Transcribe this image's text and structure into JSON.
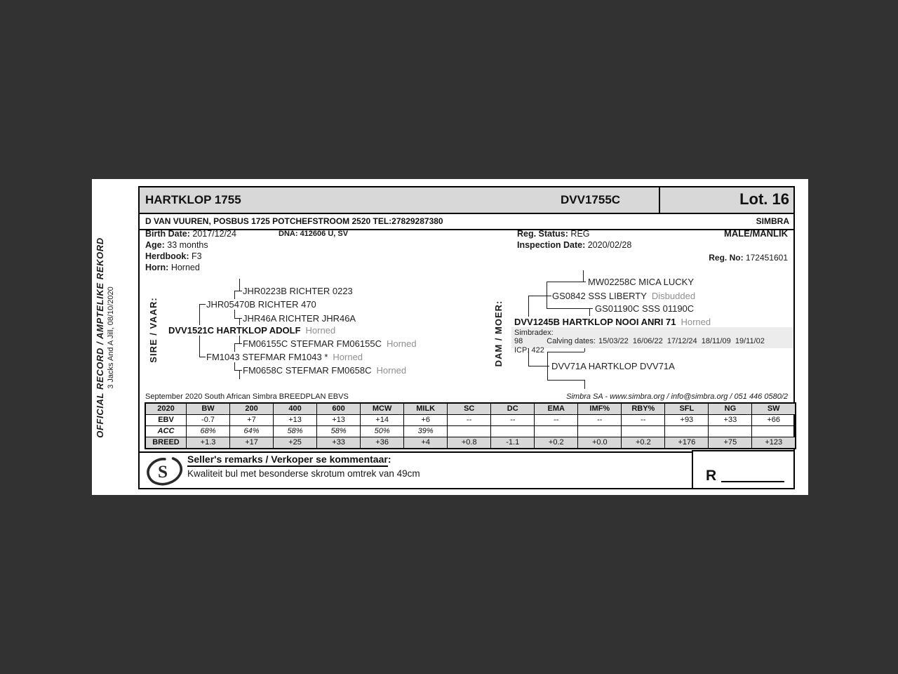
{
  "colors": {
    "outer_background": "#323232",
    "page_background": "#ffffff",
    "header_gray": "#d8d8d8",
    "stats_band_gray": "#ececec",
    "muted_text": "#8f8f8f"
  },
  "side_label": {
    "line1": "OFFICIAL RECORD / AMPTELIKE REKORD",
    "line2": "3 Jacks And A Jill, 08/10/2020"
  },
  "header": {
    "name": "HARTKLOP 1755",
    "id": "DVV1755C",
    "lot": "Lot. 16",
    "owner": "D VAN VUUREN, POSBUS 1725 POTCHEFSTROOM 2520 TEL:27829287380",
    "breed": "SIMBRA"
  },
  "details": {
    "birth_date_label": "Birth Date:",
    "birth_date": "2017/12/24",
    "age_label": "Age:",
    "age": "33 months",
    "herdbook_label": "Herdbook:",
    "herdbook": "F3",
    "horn_label": "Horn:",
    "horn": "Horned",
    "dna_label": "DNA:",
    "dna": "412606 U, SV",
    "reg_status_label": "Reg. Status:",
    "reg_status": "REG",
    "inspection_label": "Inspection Date:",
    "inspection_date": "2020/02/28",
    "sex": "MALE/MANLIK",
    "reg_no_label": "Reg. No:",
    "reg_no": "172451601"
  },
  "sire_tree": {
    "label": "SIRE / VAAR:",
    "main": "DVV1521C HARTKLOP ADOLF",
    "main_suffix": "Horned",
    "father": "JHR05470B RICHTER 470",
    "ff": "JHR0223B RICHTER 0223",
    "fm": "JHR46A RICHTER JHR46A",
    "mother": "FM1043 STEFMAR FM1043 *",
    "mother_suffix": "Horned",
    "mf": "FM06155C STEFMAR FM06155C",
    "mf_suffix": "Horned",
    "mm": "FM0658C STEFMAR FM0658C",
    "mm_suffix": "Horned"
  },
  "dam_tree": {
    "label": "DAM / MOER:",
    "main": "DVV1245B HARTKLOP NOOI ANRI 71",
    "main_suffix": "Horned",
    "father": "GS0842 SSS LIBERTY",
    "father_suffix": "Disbudded",
    "ff": "MW02258C MICA LUCKY",
    "fm": "GS01190C SSS 01190C",
    "mother": "DVV71A HARTKLOP DVV71A"
  },
  "dam_stats": {
    "simbradex_label": "Simbradex:",
    "simbradex": "98",
    "calving_label": "Calving dates:",
    "calving_dates": "15/03/22  16/06/22  17/12/24  18/11/09  19/11/02",
    "icp_label": "ICP:",
    "icp": "422"
  },
  "ebv": {
    "caption_left": "September 2020 South African Simbra BREEDPLAN EBVS",
    "caption_right": "Simbra SA - www.simbra.org / info@simbra.org / 051 446 0580/2",
    "columns": [
      "2020",
      "BW",
      "200",
      "400",
      "600",
      "MCW",
      "MILK",
      "SC",
      "DC",
      "EMA",
      "IMF%",
      "RBY%",
      "SFL",
      "NG",
      "SW"
    ],
    "rows": [
      {
        "label": "EBV",
        "values": [
          "-0.7",
          "+7",
          "+13",
          "+13",
          "+14",
          "+6",
          "--",
          "--",
          "--",
          "--",
          "--",
          "+93",
          "+33",
          "+66"
        ]
      },
      {
        "label": "ACC",
        "values": [
          "68%",
          "64%",
          "58%",
          "58%",
          "50%",
          "39%",
          "",
          "",
          "",
          "",
          "",
          "",
          "",
          ""
        ]
      },
      {
        "label": "BREED",
        "values": [
          "+1.3",
          "+17",
          "+25",
          "+33",
          "+36",
          "+4",
          "+0.8",
          "-1.1",
          "+0.2",
          "+0.0",
          "+0.2",
          "+176",
          "+75",
          "+123"
        ]
      }
    ]
  },
  "remarks": {
    "logo_letter": "S",
    "title": "Seller's remarks / Verkoper se kommentaar",
    "colon": ":",
    "text": "Kwaliteit bul met besonderse skrotum omtrek van 49cm"
  },
  "price": {
    "currency_symbol": "R"
  }
}
